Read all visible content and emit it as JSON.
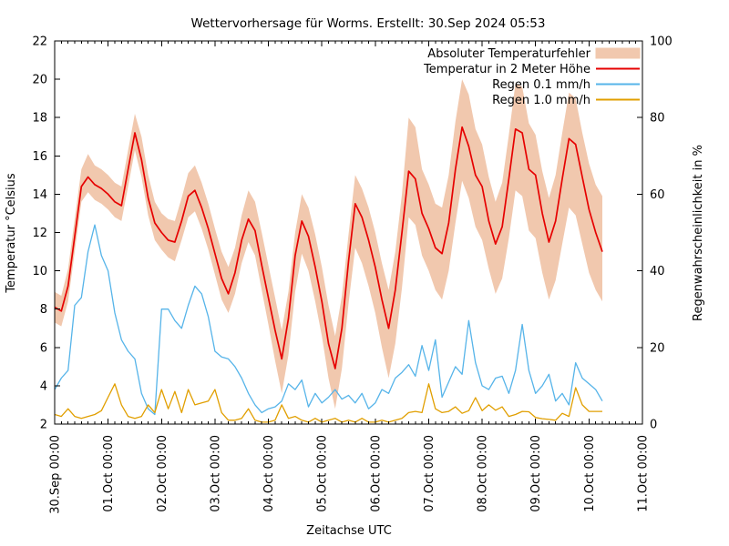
{
  "title": "Wettervorhersage für Worms. Erstellt: 30.Sep 2024 05:53",
  "axes": {
    "x": {
      "label": "Zeitachse UTC",
      "range_days": [
        0,
        11
      ],
      "major_step_days": 1,
      "minor_step_days": 0.125,
      "tick_labels": [
        "30.Sep 00:00",
        "01.Oct 00:00",
        "02.Oct 00:00",
        "03.Oct 00:00",
        "04.Oct 00:00",
        "05.Oct 00:00",
        "06.Oct 00:00",
        "07.Oct 00:00",
        "08.Oct 00:00",
        "09.Oct 00:00",
        "10.Oct 00:00",
        "11.Oct 00:00"
      ]
    },
    "y_left": {
      "label": "Temperatur °Celsius",
      "range": [
        2,
        22
      ],
      "major_step": 2,
      "tick_labels": [
        "2",
        "4",
        "6",
        "8",
        "10",
        "12",
        "14",
        "16",
        "18",
        "20",
        "22"
      ]
    },
    "y_right": {
      "label": "Regenwahrscheinlichkeit in %",
      "range": [
        0,
        100
      ],
      "major_step": 20,
      "tick_labels": [
        "0",
        "20",
        "40",
        "60",
        "80",
        "100"
      ]
    }
  },
  "colors": {
    "band": "#f1c8ae",
    "temperature": "#e60000",
    "rain01": "#56b4e9",
    "rain10": "#e19f00",
    "axis": "#000000",
    "background": "#ffffff"
  },
  "legend": [
    {
      "label": "Absoluter Temperaturfehler",
      "style": "band",
      "color": "#f1c8ae"
    },
    {
      "label": "Temperatur in 2 Meter Höhe",
      "style": "line",
      "color": "#e60000"
    },
    {
      "label": "Regen 0.1 mm/h",
      "style": "line",
      "color": "#56b4e9"
    },
    {
      "label": "Regen 1.0 mm/h",
      "style": "line",
      "color": "#e19f00"
    }
  ],
  "chart_data": {
    "type": "line",
    "x_start_day": 0,
    "x_step_days": 0.125,
    "x_axis_span_days": [
      0,
      11
    ],
    "ylim_left": [
      2,
      22
    ],
    "ylim_right": [
      0,
      100
    ],
    "grid": false,
    "legend_position": "top-right-inside",
    "series": [
      {
        "name": "Absoluter Temperaturfehler",
        "axis": "left",
        "style": "band",
        "color": "#f1c8ae",
        "lower": [
          7.3,
          7.1,
          8.4,
          11.0,
          13.6,
          14.1,
          13.7,
          13.5,
          13.2,
          12.8,
          12.6,
          14.4,
          16.3,
          14.9,
          12.9,
          11.6,
          11.1,
          10.7,
          10.5,
          11.6,
          12.8,
          13.1,
          12.2,
          11.1,
          9.8,
          8.5,
          7.8,
          8.8,
          10.4,
          11.5,
          10.8,
          9.0,
          7.2,
          5.3,
          3.6,
          5.6,
          8.9,
          10.9,
          10.0,
          8.4,
          6.6,
          4.4,
          2.8,
          4.9,
          8.3,
          11.2,
          10.4,
          9.2,
          7.8,
          6.0,
          4.4,
          6.2,
          9.1,
          12.8,
          12.4,
          10.8,
          10.0,
          9.0,
          8.5,
          10.0,
          12.5,
          14.7,
          13.8,
          12.3,
          11.6,
          10.1,
          8.8,
          9.6,
          11.7,
          14.2,
          13.9,
          12.1,
          11.7,
          9.9,
          8.5,
          9.5,
          11.4,
          13.3,
          12.9,
          11.4,
          9.9,
          9.0,
          8.4
        ],
        "upper": [
          8.9,
          8.7,
          10.1,
          12.7,
          15.3,
          16.1,
          15.5,
          15.3,
          15.0,
          14.6,
          14.4,
          16.3,
          18.2,
          17.0,
          15.0,
          13.6,
          13.0,
          12.7,
          12.6,
          13.8,
          15.1,
          15.5,
          14.6,
          13.5,
          12.2,
          11.0,
          10.2,
          11.2,
          12.9,
          14.2,
          13.6,
          12.0,
          10.3,
          8.6,
          6.9,
          8.9,
          12.0,
          14.0,
          13.3,
          11.9,
          10.2,
          8.2,
          6.6,
          8.7,
          11.9,
          15.0,
          14.3,
          13.3,
          12.0,
          10.4,
          9.0,
          11.0,
          14.0,
          18.0,
          17.5,
          15.3,
          14.5,
          13.5,
          13.3,
          15.0,
          17.8,
          20.0,
          19.2,
          17.4,
          16.6,
          14.9,
          13.6,
          14.6,
          17.1,
          19.8,
          19.6,
          17.7,
          17.1,
          15.2,
          13.8,
          15.0,
          17.2,
          19.3,
          19.0,
          17.2,
          15.6,
          14.5,
          13.9
        ]
      },
      {
        "name": "Temperatur in 2 Meter Höhe",
        "axis": "left",
        "style": "line",
        "color": "#e60000",
        "values": [
          8.1,
          7.9,
          9.2,
          11.8,
          14.4,
          14.9,
          14.5,
          14.3,
          14.0,
          13.6,
          13.4,
          15.3,
          17.2,
          15.8,
          13.8,
          12.5,
          12.0,
          11.6,
          11.5,
          12.6,
          13.9,
          14.2,
          13.3,
          12.2,
          10.9,
          9.6,
          8.8,
          9.9,
          11.6,
          12.7,
          12.1,
          10.3,
          8.6,
          6.9,
          5.4,
          7.5,
          10.8,
          12.6,
          11.8,
          10.2,
          8.4,
          6.2,
          4.9,
          7.0,
          10.5,
          13.5,
          12.8,
          11.6,
          10.2,
          8.5,
          7.0,
          9.0,
          12.0,
          15.2,
          14.8,
          13.0,
          12.2,
          11.2,
          10.9,
          12.5,
          15.3,
          17.5,
          16.5,
          15.0,
          14.4,
          12.6,
          11.4,
          12.3,
          14.8,
          17.4,
          17.2,
          15.3,
          15.0,
          13.0,
          11.5,
          12.6,
          14.8,
          16.9,
          16.6,
          14.9,
          13.2,
          12.0,
          11.0
        ]
      },
      {
        "name": "Regen 0.1 mm/h",
        "axis": "right",
        "style": "line",
        "color": "#56b4e9",
        "values": [
          9,
          12,
          14,
          31,
          33,
          45,
          52,
          44,
          40,
          29,
          22,
          19,
          17,
          8,
          4,
          2.5,
          30,
          30,
          27,
          25,
          31,
          36,
          34,
          28,
          19,
          17.5,
          17,
          15,
          12,
          8,
          5,
          3,
          4,
          4.5,
          6,
          10.5,
          9,
          11.5,
          4.5,
          8,
          5.5,
          7,
          9,
          6.5,
          7.5,
          5.5,
          8,
          4,
          5.5,
          9,
          8,
          12,
          13.5,
          15.5,
          12.5,
          20.5,
          14,
          22,
          7,
          11,
          15,
          13,
          27,
          16,
          10,
          9,
          12,
          12.5,
          8,
          14,
          26,
          14,
          8,
          10,
          13,
          6,
          8,
          5,
          16,
          12,
          10.5,
          9,
          6
        ]
      },
      {
        "name": "Regen 1.0 mm/h",
        "axis": "right",
        "style": "line",
        "color": "#e19f00",
        "values": [
          2.5,
          2,
          4,
          2,
          1.5,
          2,
          2.5,
          3.5,
          7,
          10.5,
          5,
          2,
          1.5,
          2,
          5,
          3,
          9,
          4,
          8.5,
          3,
          9,
          5,
          5.5,
          6,
          9,
          3,
          1,
          1,
          1.5,
          4,
          1,
          0.5,
          0.5,
          1,
          5,
          1.5,
          2,
          1,
          0.5,
          1.5,
          0.5,
          1,
          1.5,
          0.5,
          1,
          0.5,
          1.5,
          0.5,
          0.5,
          1,
          0.5,
          1,
          1.5,
          3,
          3.3,
          3,
          10.5,
          4,
          3,
          3.3,
          4.5,
          2.8,
          3.5,
          6.9,
          3.5,
          5,
          3.6,
          4.5,
          2,
          2.5,
          3.3,
          3.2,
          1.7,
          1.4,
          1.2,
          1,
          2.8,
          2,
          9.5,
          5,
          3.3,
          3.3,
          3.3
        ]
      }
    ]
  }
}
